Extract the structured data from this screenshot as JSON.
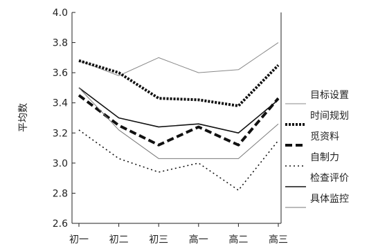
{
  "chart_data": {
    "type": "line",
    "title": "",
    "xlabel": "",
    "ylabel": "平均数",
    "categories": [
      "初一",
      "初二",
      "初三",
      "高一",
      "高二",
      "高三"
    ],
    "ylim": [
      2.6,
      4.0
    ],
    "yticks": [
      "2.6",
      "2.8",
      "3.0",
      "3.2",
      "3.4",
      "3.6",
      "3.8",
      "4.0"
    ],
    "grid": false,
    "legend_position": "right",
    "series": [
      {
        "name": "目标设置",
        "values": [
          3.68,
          3.58,
          3.7,
          3.6,
          3.62,
          3.8
        ],
        "style": "thin-solid",
        "color": "#888888"
      },
      {
        "name": "时间规划",
        "values": [
          3.68,
          3.6,
          3.43,
          3.42,
          3.38,
          3.65
        ],
        "style": "dense-dotted",
        "color": "#111111"
      },
      {
        "name": "觅资料",
        "values": [
          3.45,
          3.25,
          3.12,
          3.24,
          3.12,
          3.43
        ],
        "style": "thick-dashed",
        "color": "#111111"
      },
      {
        "name": "自制力",
        "values": [
          3.22,
          3.03,
          2.94,
          3.0,
          2.82,
          3.15
        ],
        "style": "small-dotted",
        "color": "#111111"
      },
      {
        "name": "检查评价",
        "values": [
          3.5,
          3.3,
          3.24,
          3.26,
          3.2,
          3.42
        ],
        "style": "solid",
        "color": "#111111"
      },
      {
        "name": "具体监控",
        "values": [
          3.5,
          3.22,
          3.03,
          3.03,
          3.03,
          3.26
        ],
        "style": "thin-solid",
        "color": "#777777"
      }
    ]
  }
}
